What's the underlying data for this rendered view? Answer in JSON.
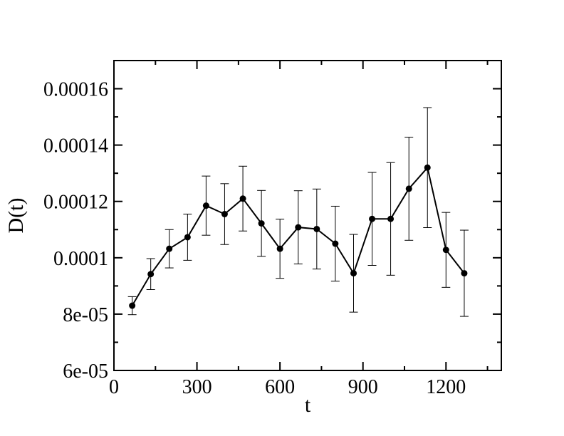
{
  "chart_data": {
    "type": "scatter",
    "title": "",
    "xlabel": "t",
    "ylabel": "D(t)",
    "xlim": [
      0,
      1400
    ],
    "ylim": [
      6e-05,
      0.00017
    ],
    "grid": false,
    "legend": "none",
    "x_ticks": [
      {
        "value": 0,
        "label": "0"
      },
      {
        "value": 300,
        "label": "300"
      },
      {
        "value": 600,
        "label": "600"
      },
      {
        "value": 900,
        "label": "900"
      },
      {
        "value": 1200,
        "label": "1200"
      }
    ],
    "x_minor_ticks": [
      150,
      450,
      750,
      1050,
      1350
    ],
    "y_ticks": [
      {
        "value": 6e-05,
        "label": "6e-05"
      },
      {
        "value": 8e-05,
        "label": "8e-05"
      },
      {
        "value": 0.0001,
        "label": "0.0001"
      },
      {
        "value": 0.00012,
        "label": "0.00012"
      },
      {
        "value": 0.00014,
        "label": "0.00014"
      },
      {
        "value": 0.00016,
        "label": "0.00016"
      }
    ],
    "y_minor_ticks": [
      7e-05,
      9e-05,
      0.00011,
      0.00013,
      0.00015,
      0.00017
    ],
    "series": [
      {
        "color": "#000000",
        "marker": "circle",
        "points": [
          {
            "x": 66,
            "y": 8.3e-05,
            "err": 3.2e-06
          },
          {
            "x": 133,
            "y": 9.42e-05,
            "err": 5.5e-06
          },
          {
            "x": 200,
            "y": 0.0001032,
            "err": 6.8e-06
          },
          {
            "x": 266,
            "y": 0.0001073,
            "err": 8.2e-06
          },
          {
            "x": 333,
            "y": 0.0001185,
            "err": 1.05e-05
          },
          {
            "x": 400,
            "y": 0.0001155,
            "err": 1.08e-05
          },
          {
            "x": 466,
            "y": 0.000121,
            "err": 1.15e-05
          },
          {
            "x": 533,
            "y": 0.0001122,
            "err": 1.17e-05
          },
          {
            "x": 600,
            "y": 0.0001032,
            "err": 1.05e-05
          },
          {
            "x": 666,
            "y": 0.0001108,
            "err": 1.3e-05
          },
          {
            "x": 733,
            "y": 0.0001102,
            "err": 1.42e-05
          },
          {
            "x": 800,
            "y": 0.000105,
            "err": 1.33e-05
          },
          {
            "x": 866,
            "y": 9.45e-05,
            "err": 1.38e-05
          },
          {
            "x": 933,
            "y": 0.0001138,
            "err": 1.65e-05
          },
          {
            "x": 1000,
            "y": 0.0001138,
            "err": 2e-05
          },
          {
            "x": 1066,
            "y": 0.0001245,
            "err": 1.83e-05
          },
          {
            "x": 1133,
            "y": 0.000132,
            "err": 2.13e-05
          },
          {
            "x": 1200,
            "y": 0.0001028,
            "err": 1.33e-05
          },
          {
            "x": 1266,
            "y": 9.45e-05,
            "err": 1.53e-05
          }
        ]
      }
    ]
  }
}
